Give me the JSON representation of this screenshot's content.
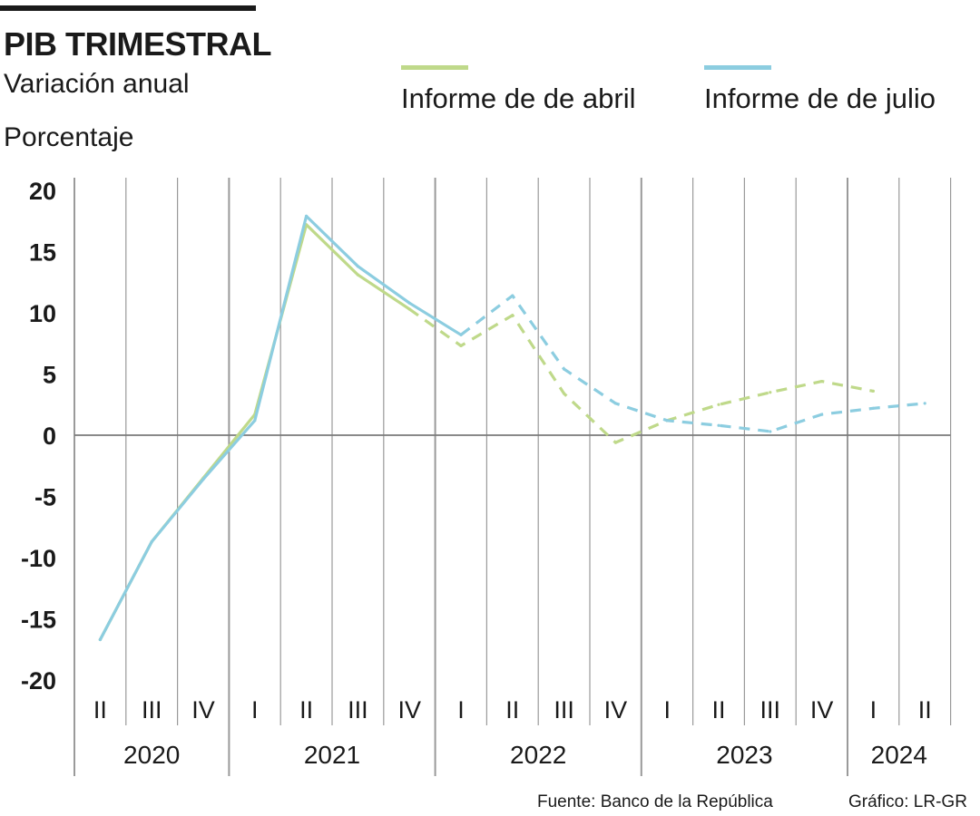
{
  "header": {
    "title": "PIB TRIMESTRAL",
    "subtitle": "Variación anual",
    "unit": "Porcentaje"
  },
  "footer": {
    "source": "Fuente: Banco de la República",
    "credit": "Gráfico: LR-GR"
  },
  "colors": {
    "abril": "#bfd98a",
    "julio": "#8ccde0",
    "grid": "#9a9a9a",
    "zero_line": "#7a7a7a",
    "text": "#1a1a1a"
  },
  "chart_data": {
    "type": "line",
    "title": "PIB TRIMESTRAL",
    "subtitle": "Variación anual",
    "ylabel": "Porcentaje",
    "ylim": [
      -20,
      20
    ],
    "yticks": [
      "20",
      "15",
      "10",
      "5",
      "0",
      "-5",
      "-10",
      "-15",
      "-20"
    ],
    "ytick_values": [
      20,
      15,
      10,
      5,
      0,
      -5,
      -10,
      -15,
      -20
    ],
    "categories": [
      "II",
      "III",
      "IV",
      "I",
      "II",
      "III",
      "IV",
      "I",
      "II",
      "III",
      "IV",
      "I",
      "II",
      "III",
      "IV",
      "I",
      "II"
    ],
    "years": [
      {
        "label": "2020",
        "start": 0,
        "end": 2
      },
      {
        "label": "2021",
        "start": 3,
        "end": 6
      },
      {
        "label": "2022",
        "start": 7,
        "end": 10
      },
      {
        "label": "2023",
        "start": 11,
        "end": 14
      },
      {
        "label": "2024",
        "start": 15,
        "end": 16
      }
    ],
    "grid": true,
    "legend_position": "top-right",
    "series": [
      {
        "name": "Informe de de abril",
        "color": "#bfd98a",
        "values": [
          -16.7,
          -8.7,
          -3.5,
          1.7,
          17.2,
          13.1,
          10.3,
          7.3,
          9.8,
          3.4,
          -0.6,
          1.2,
          2.5,
          3.5,
          4.4,
          3.6,
          null
        ],
        "solid_until_index": 6
      },
      {
        "name": "Informe de de julio",
        "color": "#8ccde0",
        "values": [
          -16.7,
          -8.7,
          -3.6,
          1.2,
          17.9,
          13.8,
          10.8,
          8.2,
          11.4,
          5.4,
          2.6,
          1.2,
          0.8,
          0.3,
          1.7,
          2.2,
          2.6
        ],
        "solid_until_index": 7
      }
    ]
  }
}
